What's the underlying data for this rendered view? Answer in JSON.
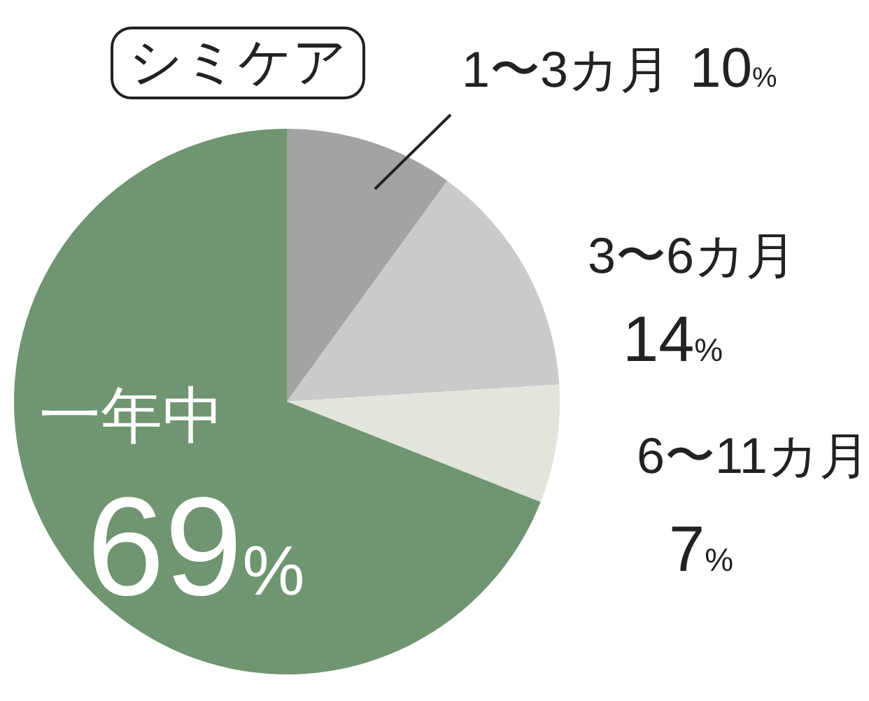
{
  "chart_data": {
    "type": "pie",
    "title": "シミケア",
    "categories": [
      "1〜3カ月",
      "3〜6カ月",
      "6〜11カ月",
      "一年中"
    ],
    "values": [
      10,
      14,
      7,
      69
    ],
    "colors": [
      "#a3a3a3",
      "#cacaca",
      "#e1e5dc",
      "#6f9571"
    ],
    "value_labels": [
      "10%",
      "14%",
      "7%",
      "69%"
    ]
  }
}
